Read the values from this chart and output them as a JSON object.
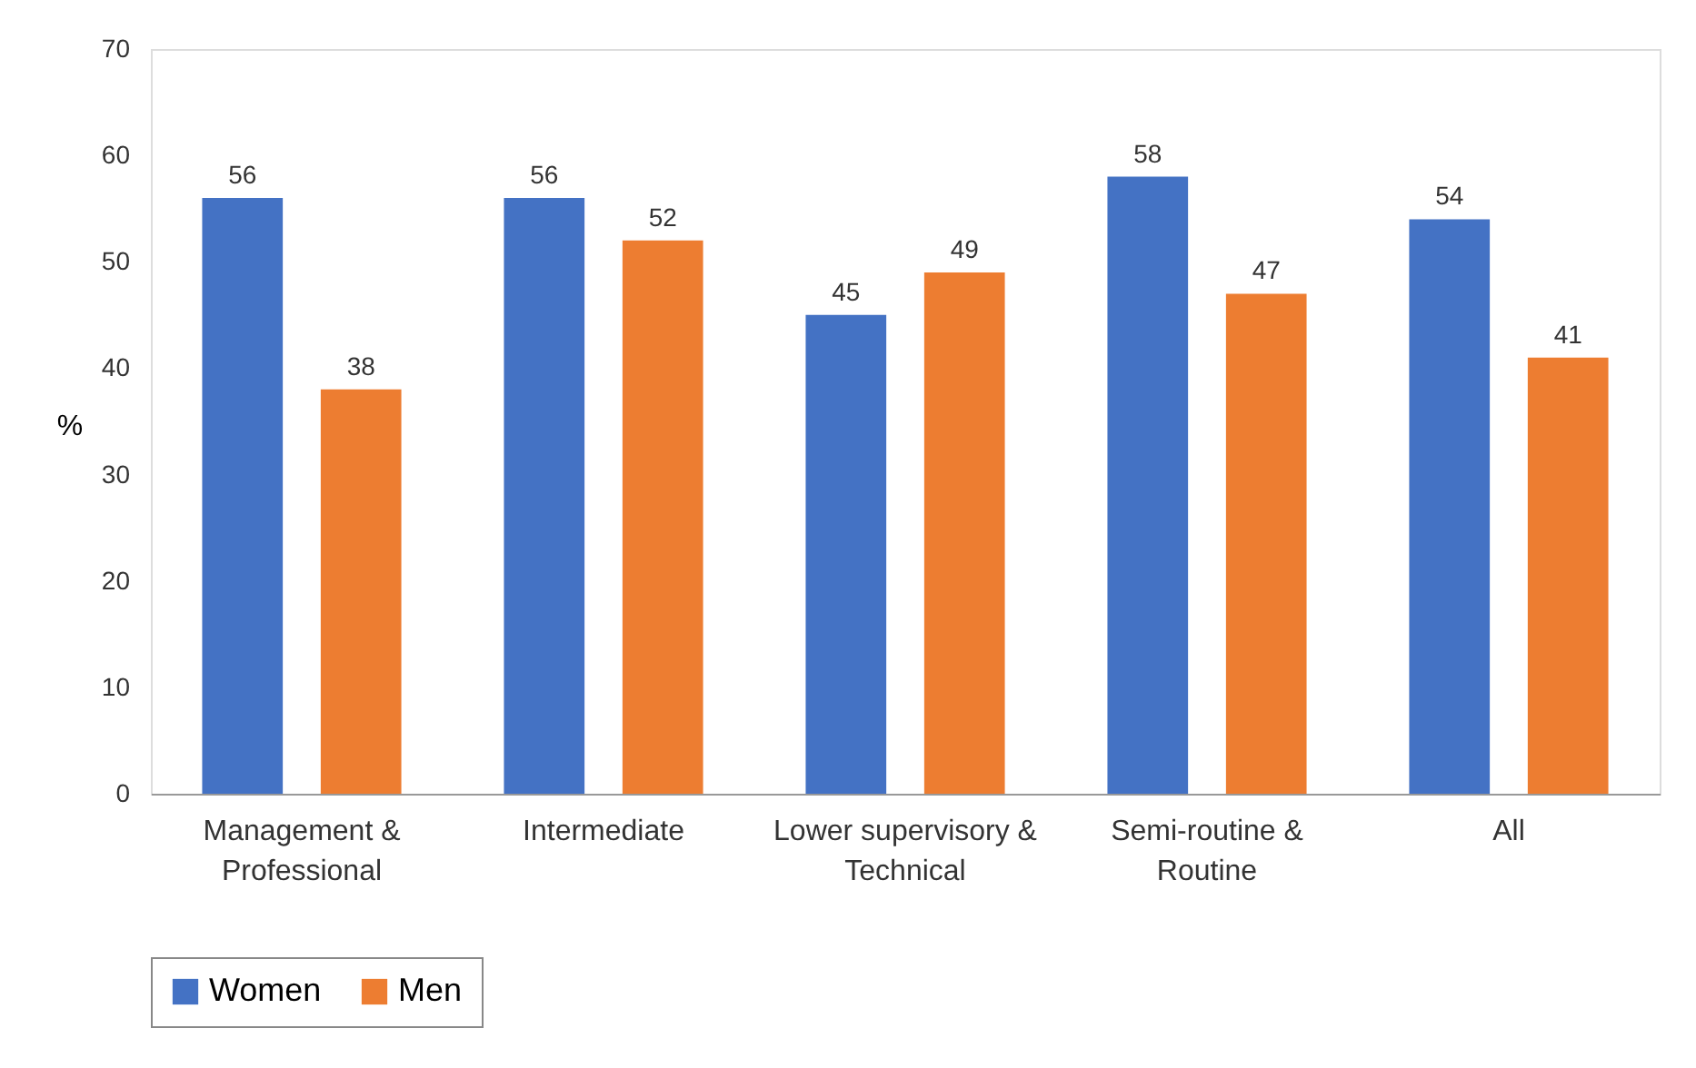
{
  "chart_data": {
    "type": "bar",
    "categories": [
      "Management &\nProfessional",
      "Intermediate",
      "Lower supervisory &\nTechnical",
      "Semi-routine &\nRoutine",
      "All"
    ],
    "series": [
      {
        "name": "Women",
        "color": "#4472c4",
        "values": [
          56,
          56,
          45,
          58,
          54
        ]
      },
      {
        "name": "Men",
        "color": "#ed7d31",
        "values": [
          38,
          52,
          49,
          47,
          41
        ]
      }
    ],
    "ylabel": "%",
    "ylim": [
      0,
      70
    ],
    "yticks": [
      0,
      10,
      20,
      30,
      40,
      50,
      60,
      70
    ],
    "data_labels": true,
    "grid": false,
    "legend": "bottom"
  }
}
